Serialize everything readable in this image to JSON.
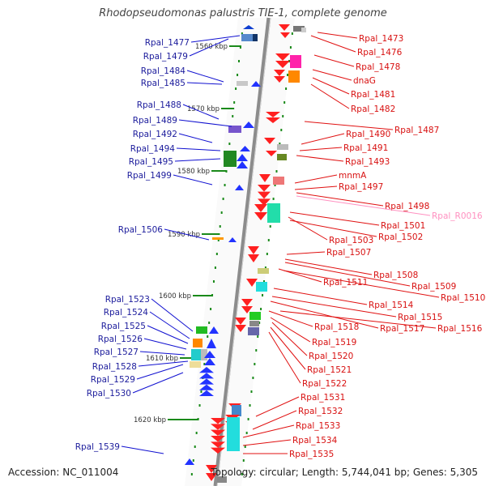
{
  "title": "Rhodopseudomonas palustris TIE-1, complete genome",
  "accession": "Accession: NC_011004",
  "summary": "Topology: circular; Length: 5,744,041 bp; Genes: 5,305",
  "colors": {
    "left_label": "#1c1c9c",
    "right_label": "#d81010",
    "rna_label": "#ff90c0",
    "left_line": "#1010d0",
    "right_line": "#e01010",
    "rna_line": "#ff90c0",
    "tick": "#1a8a1a",
    "backbone": "#8c8c8c"
  },
  "kbp_markers": [
    "1560 kbp",
    "1570 kbp",
    "1580 kbp",
    "1590 kbp",
    "1600 kbp",
    "1610 kbp",
    "1620 kbp"
  ],
  "left_genes": [
    "Rpal_1477",
    "Rpal_1479",
    "Rpal_1484",
    "Rpal_1485",
    "Rpal_1488",
    "Rpal_1489",
    "Rpal_1492",
    "Rpal_1494",
    "Rpal_1495",
    "Rpal_1499",
    "Rpal_1506",
    "Rpal_1523",
    "Rpal_1524",
    "Rpal_1525",
    "Rpal_1526",
    "Rpal_1527",
    "Rpal_1528",
    "Rpal_1529",
    "Rpal_1530",
    "Rpal_1539"
  ],
  "right_genes": [
    "Rpal_1473",
    "Rpal_1476",
    "Rpal_1478",
    "dnaG",
    "Rpal_1481",
    "Rpal_1482",
    "Rpal_1487",
    "Rpal_1490",
    "Rpal_1491",
    "Rpal_1493",
    "mnmA",
    "Rpal_1497",
    "Rpal_1498",
    "Rpal_R0016",
    "Rpal_1501",
    "Rpal_1503",
    "Rpal_1502",
    "Rpal_1507",
    "Rpal_1508",
    "Rpal_1509",
    "Rpal_1511",
    "Rpal_1510",
    "Rpal_1514",
    "Rpal_1515",
    "Rpal_1518",
    "Rpal_1517",
    "Rpal_1516",
    "Rpal_1519",
    "Rpal_1520",
    "Rpal_1521",
    "Rpal_1522",
    "Rpal_1531",
    "Rpal_1532",
    "Rpal_1533",
    "Rpal_1534",
    "Rpal_1535"
  ]
}
